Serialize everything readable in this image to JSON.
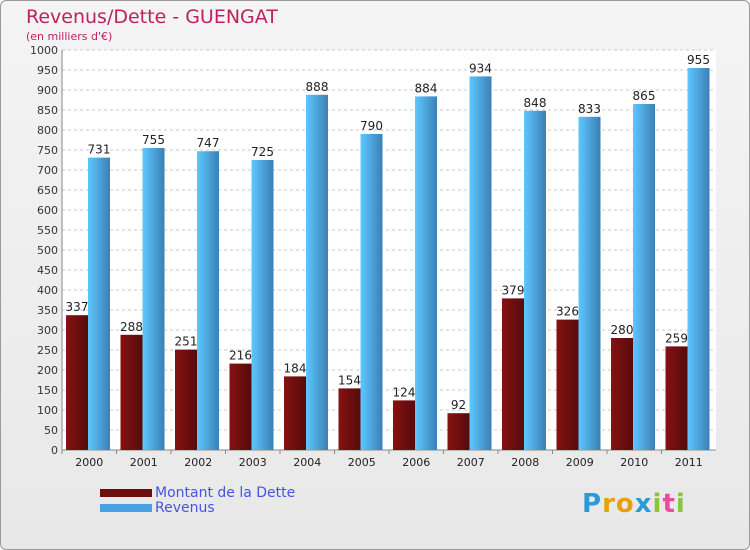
{
  "chart_data": {
    "type": "bar",
    "title": "Revenus/Dette - GUENGAT",
    "subtitle": "(en milliers d'€)",
    "categories": [
      "2000",
      "2001",
      "2002",
      "2003",
      "2004",
      "2005",
      "2006",
      "2007",
      "2008",
      "2009",
      "2010",
      "2011"
    ],
    "series": [
      {
        "name": "Montant de la Dette",
        "values": [
          337,
          288,
          251,
          216,
          184,
          154,
          124,
          92,
          379,
          326,
          280,
          259
        ],
        "color": "#6b0e0e"
      },
      {
        "name": "Revenus",
        "values": [
          731,
          755,
          747,
          725,
          888,
          790,
          884,
          934,
          848,
          833,
          865,
          955
        ],
        "color": "#4aa0e4"
      }
    ],
    "ylim": [
      0,
      1000
    ],
    "yticks": [
      0,
      50,
      100,
      150,
      200,
      250,
      300,
      350,
      400,
      450,
      500,
      550,
      600,
      650,
      700,
      750,
      800,
      850,
      900,
      950,
      1000
    ],
    "grid": "horizontal dashed",
    "legend_position": "bottom-left"
  },
  "logo": {
    "letters": [
      "P",
      "r",
      "o",
      "x",
      "i",
      "t",
      "i"
    ],
    "colors": [
      "#2a9ad8",
      "#e8a010",
      "#e8a010",
      "#2a9ad8",
      "#8cc43c",
      "#e84c9c",
      "#8cc43c"
    ]
  }
}
